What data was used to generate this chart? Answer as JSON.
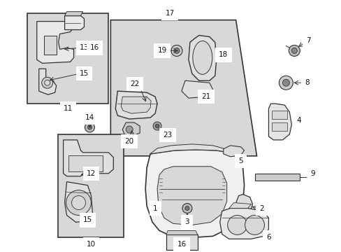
{
  "bg_color": "#ffffff",
  "fig_width": 4.89,
  "fig_height": 3.6,
  "dpi": 100,
  "lc": "#333333",
  "fs": 7.5,
  "shaded_bg": "#d8d8d8",
  "part_color": "#444444"
}
